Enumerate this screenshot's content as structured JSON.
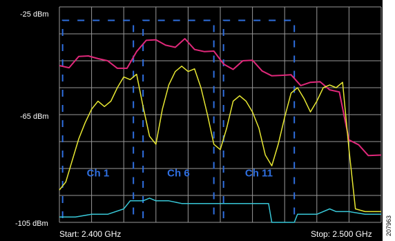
{
  "analyzer": {
    "y_labels": {
      "top": "-25 dBm",
      "mid": "-65 dBm",
      "bottom": "-105 dBm"
    },
    "start_label": "Start: 2.400 GHz",
    "stop_label": "Stop: 2.500 GHz",
    "figure_id": "207963",
    "colors": {
      "background": "#000000",
      "grid": "#9a9a9a",
      "max_hold": "#e0287a",
      "live": "#e8e832",
      "channel_mask": "#2f6fe0",
      "floor": "#38c8d8"
    }
  },
  "chart_data": {
    "type": "line",
    "xlabel": "",
    "ylabel": "",
    "xlim": [
      2.4,
      2.5
    ],
    "ylim": [
      -105,
      -25
    ],
    "x_unit": "GHz",
    "y_unit": "dBm",
    "grid": true,
    "x_tick_labels": [
      "Start: 2.400 GHz",
      "Stop: 2.500 GHz"
    ],
    "y_tick_labels": [
      "-25 dBm",
      "-65 dBm",
      "-105 dBm"
    ],
    "channels": [
      {
        "label": "Ch 1",
        "start": 2.401,
        "end": 2.423,
        "level": -30
      },
      {
        "label": "Ch 6",
        "start": 2.426,
        "end": 2.448,
        "level": -30
      },
      {
        "label": "Ch 11",
        "start": 2.451,
        "end": 2.473,
        "level": -30
      }
    ],
    "series": [
      {
        "color": "#e0287a",
        "x": [
          2.4,
          2.403,
          2.406,
          2.409,
          2.412,
          2.415,
          2.418,
          2.421,
          2.424,
          2.427,
          2.43,
          2.433,
          2.436,
          2.439,
          2.442,
          2.445,
          2.448,
          2.451,
          2.454,
          2.457,
          2.46,
          2.463,
          2.466,
          2.469,
          2.472,
          2.475,
          2.478,
          2.481,
          2.484,
          2.487,
          2.49,
          2.493,
          2.496,
          2.5
        ],
        "y": [
          -45,
          -47,
          -44,
          -45,
          -43,
          -45,
          -49,
          -46,
          -41,
          -38,
          -39,
          -38,
          -40,
          -38,
          -39,
          -41,
          -42,
          -48,
          -47,
          -45,
          -46,
          -47,
          -50,
          -51,
          -52,
          -53,
          -53,
          -54,
          -54,
          -56,
          -75,
          -78,
          -79,
          -80
        ]
      },
      {
        "color": "#e8e832",
        "x": [
          2.4,
          2.402,
          2.404,
          2.406,
          2.408,
          2.41,
          2.412,
          2.414,
          2.416,
          2.418,
          2.42,
          2.422,
          2.424,
          2.426,
          2.428,
          2.43,
          2.432,
          2.434,
          2.436,
          2.438,
          2.44,
          2.442,
          2.444,
          2.446,
          2.448,
          2.45,
          2.452,
          2.454,
          2.456,
          2.458,
          2.46,
          2.462,
          2.464,
          2.466,
          2.468,
          2.47,
          2.472,
          2.474,
          2.476,
          2.478,
          2.48,
          2.482,
          2.484,
          2.486,
          2.488,
          2.49,
          2.492,
          2.495,
          2.5
        ],
        "y": [
          -93,
          -90,
          -82,
          -74,
          -68,
          -63,
          -60,
          -62,
          -60,
          -55,
          -51,
          -52,
          -50,
          -62,
          -73,
          -76,
          -63,
          -54,
          -49,
          -47,
          -49,
          -48,
          -55,
          -65,
          -76,
          -78,
          -70,
          -60,
          -58,
          -60,
          -64,
          -70,
          -80,
          -84,
          -76,
          -66,
          -57,
          -55,
          -59,
          -64,
          -60,
          -55,
          -54,
          -55,
          -53,
          -78,
          -100,
          -101,
          -101
        ]
      },
      {
        "color": "#38c8d8",
        "x": [
          2.4,
          2.405,
          2.41,
          2.415,
          2.42,
          2.422,
          2.426,
          2.428,
          2.43,
          2.434,
          2.438,
          2.442,
          2.446,
          2.45,
          2.454,
          2.458,
          2.462,
          2.465,
          2.466,
          2.473,
          2.474,
          2.48,
          2.484,
          2.486,
          2.49,
          2.495,
          2.5
        ],
        "y": [
          -103,
          -103,
          -102,
          -102,
          -100,
          -97,
          -97,
          -96,
          -97,
          -97,
          -98,
          -98,
          -98,
          -98,
          -98,
          -98,
          -98,
          -98,
          -105,
          -105,
          -102,
          -102,
          -100,
          -101,
          -101,
          -102,
          -102
        ]
      }
    ]
  }
}
